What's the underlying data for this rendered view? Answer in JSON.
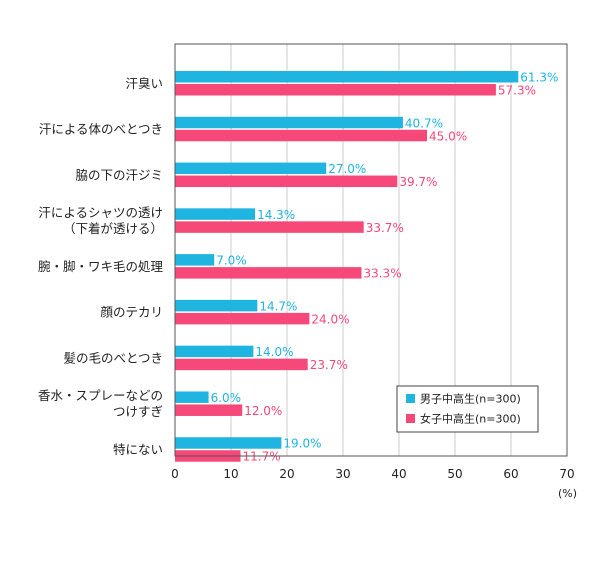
{
  "chart_data": {
    "type": "bar",
    "orientation": "horizontal",
    "categories": [
      [
        "汗臭い"
      ],
      [
        "汗による体のべとつき"
      ],
      [
        "脇の下の汗ジミ"
      ],
      [
        "汗によるシャツの透け",
        "（下着が透ける）"
      ],
      [
        "腕・脚・ワキ毛の処理"
      ],
      [
        "顔のテカリ"
      ],
      [
        "髪の毛のべとつき"
      ],
      [
        "香水・スプレーなどの",
        "つけすぎ"
      ],
      [
        "特にない"
      ]
    ],
    "series": [
      {
        "name": "男子中高生(n=300)",
        "color": "#1fb5e0",
        "values": [
          61.3,
          40.7,
          27.0,
          14.3,
          7.0,
          14.7,
          14.0,
          6.0,
          19.0
        ],
        "labels": [
          "61.3%",
          "40.7%",
          "27.0%",
          "14.3%",
          "7.0%",
          "14.7%",
          "14.0%",
          "6.0%",
          "19.0%"
        ]
      },
      {
        "name": "女子中高生(n=300)",
        "color": "#f7487a",
        "values": [
          57.3,
          45.0,
          39.7,
          33.7,
          33.3,
          24.0,
          23.7,
          12.0,
          11.7
        ],
        "labels": [
          "57.3%",
          "45.0%",
          "39.7%",
          "33.7%",
          "33.3%",
          "24.0%",
          "23.7%",
          "12.0%",
          "11.7%"
        ]
      }
    ],
    "xlim": [
      0,
      70
    ],
    "xticks": [
      "0",
      "10",
      "20",
      "30",
      "40",
      "50",
      "60",
      "70"
    ],
    "x_unit": "(%)",
    "legend": "bottom-right"
  }
}
